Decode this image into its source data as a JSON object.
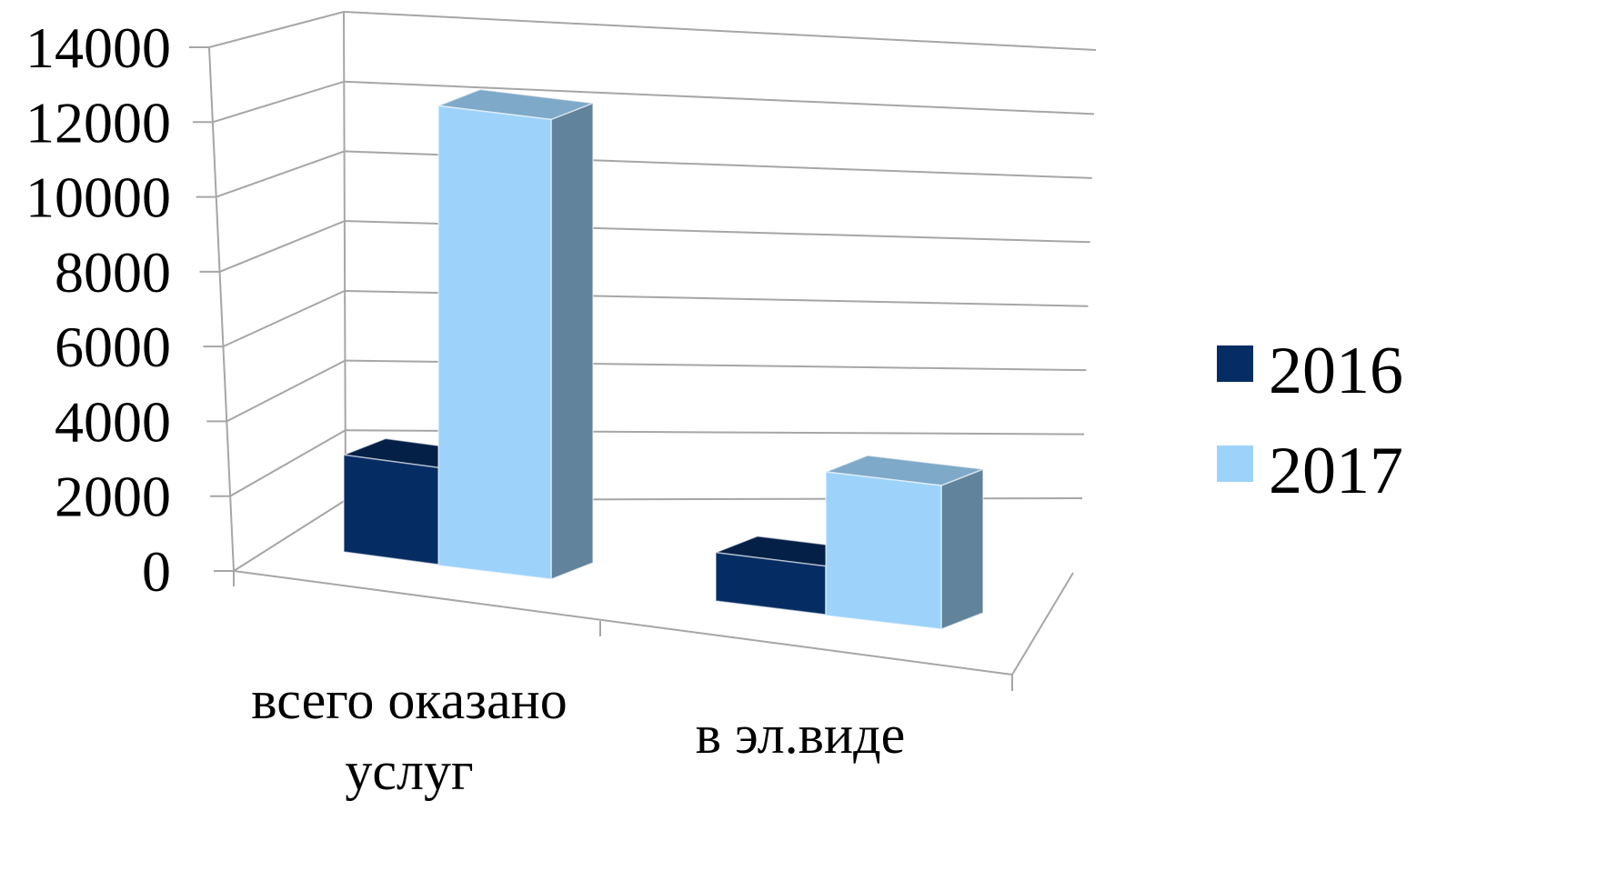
{
  "chart_data": {
    "type": "bar",
    "style": "3d-clustered-column",
    "categories": [
      "всего оказано услуг",
      "в эл.виде"
    ],
    "series": [
      {
        "name": "2016",
        "values": [
          2700,
          1350
        ],
        "color": "#062d63"
      },
      {
        "name": "2017",
        "values": [
          12800,
          4000
        ],
        "color": "#9dd3fa"
      }
    ],
    "ylim": [
      0,
      14000
    ],
    "yticks": [
      "0",
      "2000",
      "4000",
      "6000",
      "8000",
      "10000",
      "12000",
      "14000"
    ],
    "grid": true,
    "legend": "right"
  }
}
